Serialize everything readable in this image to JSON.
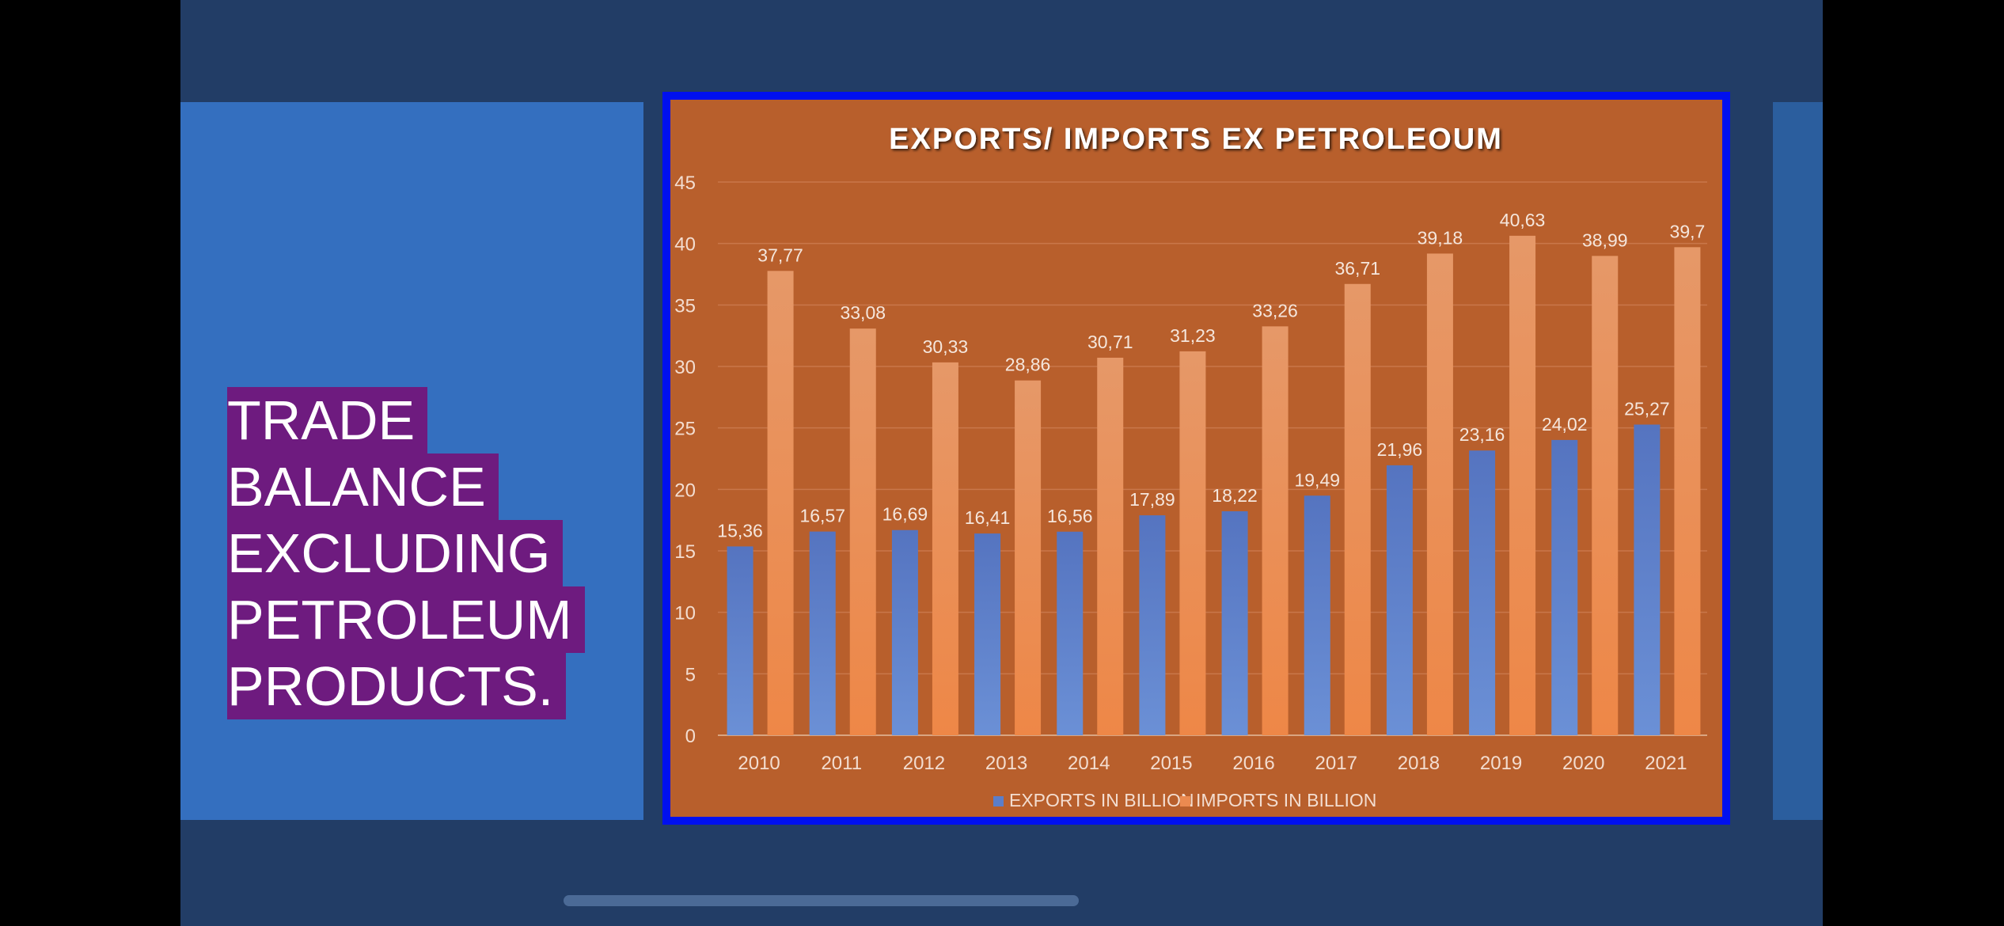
{
  "slide": {
    "title_lines": [
      "TRADE",
      "BALANCE",
      "EXCLUDING",
      "PETROLEUM",
      "PRODUCTS."
    ]
  },
  "colors": {
    "background": "#223d66",
    "left_panel": "#346fbf",
    "title_highlight": "#6e1b7f",
    "chart_frame_border": "#0010ef",
    "chart_background": "#b85f2c",
    "exports_bar": "#5b7ec9",
    "imports_bar": "#eb8a50"
  },
  "chart_data": {
    "type": "bar",
    "title": "EXPORTS/ IMPORTS EX PETROLEOUM",
    "xlabel": "",
    "ylabel": "",
    "ylim": [
      0,
      45
    ],
    "yticks": [
      0,
      5,
      10,
      15,
      20,
      25,
      30,
      35,
      40,
      45
    ],
    "grid": true,
    "legend_position": "bottom",
    "categories": [
      "2010",
      "2011",
      "2012",
      "2013",
      "2014",
      "2015",
      "2016",
      "2017",
      "2018",
      "2019",
      "2020",
      "2021"
    ],
    "series": [
      {
        "name": "EXPORTS IN BILLION",
        "values": [
          15.36,
          16.57,
          16.69,
          16.41,
          16.56,
          17.89,
          18.22,
          19.49,
          21.96,
          23.16,
          24.02,
          25.27
        ],
        "labels": [
          "15,36",
          "16,57",
          "16,69",
          "16,41",
          "16,56",
          "17,89",
          "18,22",
          "19,49",
          "21,96",
          "23,16",
          "24,02",
          "25,27"
        ]
      },
      {
        "name": "IMPORTS IN BILLION",
        "values": [
          37.77,
          33.08,
          30.33,
          28.86,
          30.71,
          31.23,
          33.26,
          36.71,
          39.18,
          40.63,
          38.99,
          39.7
        ],
        "labels": [
          "37,77",
          "33,08",
          "30,33",
          "28,86",
          "30,71",
          "31,23",
          "33,26",
          "36,71",
          "39,18",
          "40,63",
          "38,99",
          "39,7"
        ]
      }
    ]
  }
}
